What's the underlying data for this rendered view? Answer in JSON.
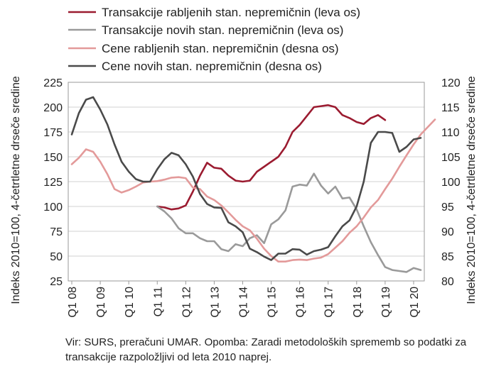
{
  "chart_data": {
    "type": "line",
    "title": "",
    "x_tick_labels": [
      "Q1 08",
      "Q1 09",
      "Q1 10",
      "Q1 11",
      "Q1 12",
      "Q1 13",
      "Q1 14",
      "Q1 15",
      "Q1 16",
      "Q1 17",
      "Q1 18",
      "Q1 19",
      "Q1 20"
    ],
    "y_left": {
      "label": "Indeks 2010=100, 4-četrtletne drseče sredine",
      "min": 25,
      "max": 225,
      "ticks": [
        25,
        50,
        75,
        100,
        125,
        150,
        175,
        200,
        225
      ]
    },
    "y_right": {
      "label": "Indeks 2010=100, 4-četrtletne drseče sredine",
      "min": 80,
      "max": 120,
      "ticks": [
        80,
        85,
        90,
        95,
        100,
        105,
        110,
        115,
        120
      ]
    },
    "grid": true,
    "legend_position": "top",
    "series": [
      {
        "name": "Transakcije rabljenih stan. nepremičnin (leva os)",
        "axis": "left",
        "color": "#9b1b30",
        "start_index": 12,
        "values": [
          100,
          99,
          97,
          98,
          101,
          115,
          131,
          144,
          139,
          138,
          131,
          126,
          125,
          126,
          135,
          140,
          145,
          150,
          160,
          175,
          182,
          191,
          200,
          201,
          202,
          200,
          192,
          189,
          185,
          183,
          189,
          192,
          187
        ]
      },
      {
        "name": "Transakcije novih stan. nepremičnin (leva os)",
        "axis": "left",
        "color": "#9a9a9a",
        "start_index": 12,
        "values": [
          100,
          95,
          88,
          78,
          73,
          73,
          68,
          65,
          65,
          57,
          55,
          62,
          60,
          68,
          71,
          63,
          82,
          87,
          96,
          120,
          122,
          121,
          133,
          121,
          113,
          120,
          108,
          109,
          97,
          80,
          64,
          51,
          39,
          36,
          35,
          34,
          38,
          36
        ]
      },
      {
        "name": "Cene rabljenih stan. nepremičnin (desna os)",
        "axis": "right",
        "color": "#e39a9a",
        "start_index": 0,
        "values": [
          103.5,
          104.8,
          106.5,
          106.0,
          104.0,
          101.5,
          98.5,
          97.8,
          98.3,
          99.0,
          99.8,
          100.0,
          100.1,
          100.4,
          100.8,
          100.9,
          100.7,
          98.8,
          98.5,
          97.0,
          96.3,
          95.2,
          93.8,
          92.3,
          91.0,
          90.2,
          88.5,
          86.5,
          85.0,
          83.9,
          83.9,
          84.2,
          84.3,
          84.2,
          84.5,
          84.7,
          85.4,
          86.7,
          88.0,
          89.7,
          91.0,
          92.8,
          94.8,
          96.3,
          98.5,
          100.6,
          103.0,
          105.3,
          107.5,
          109.5,
          111.0,
          112.5
        ]
      },
      {
        "name": "Cene novih stan. nepremičnin (desna os)",
        "axis": "right",
        "color": "#4a4a4a",
        "start_index": 0,
        "values": [
          109.5,
          113.8,
          116.5,
          117.0,
          114.5,
          111.5,
          107.5,
          104.0,
          102.0,
          100.5,
          100.0,
          100.0,
          102.5,
          104.5,
          105.8,
          105.3,
          103.5,
          101.0,
          97.5,
          95.5,
          94.8,
          94.7,
          91.8,
          91.0,
          89.8,
          86.5,
          85.8,
          84.9,
          84.2,
          85.5,
          85.5,
          86.4,
          86.3,
          85.3,
          86.0,
          86.3,
          86.8,
          89.0,
          91.0,
          92.2,
          95.0,
          100.0,
          107.8,
          110.0,
          110.0,
          109.8,
          106.0,
          107.0,
          108.5,
          108.8
        ]
      }
    ]
  },
  "note": "Vir: SURS, preračuni UMAR. Opomba: Zaradi metodoloških sprememb so podatki za transakcije razpoložljivi od leta 2010 naprej."
}
